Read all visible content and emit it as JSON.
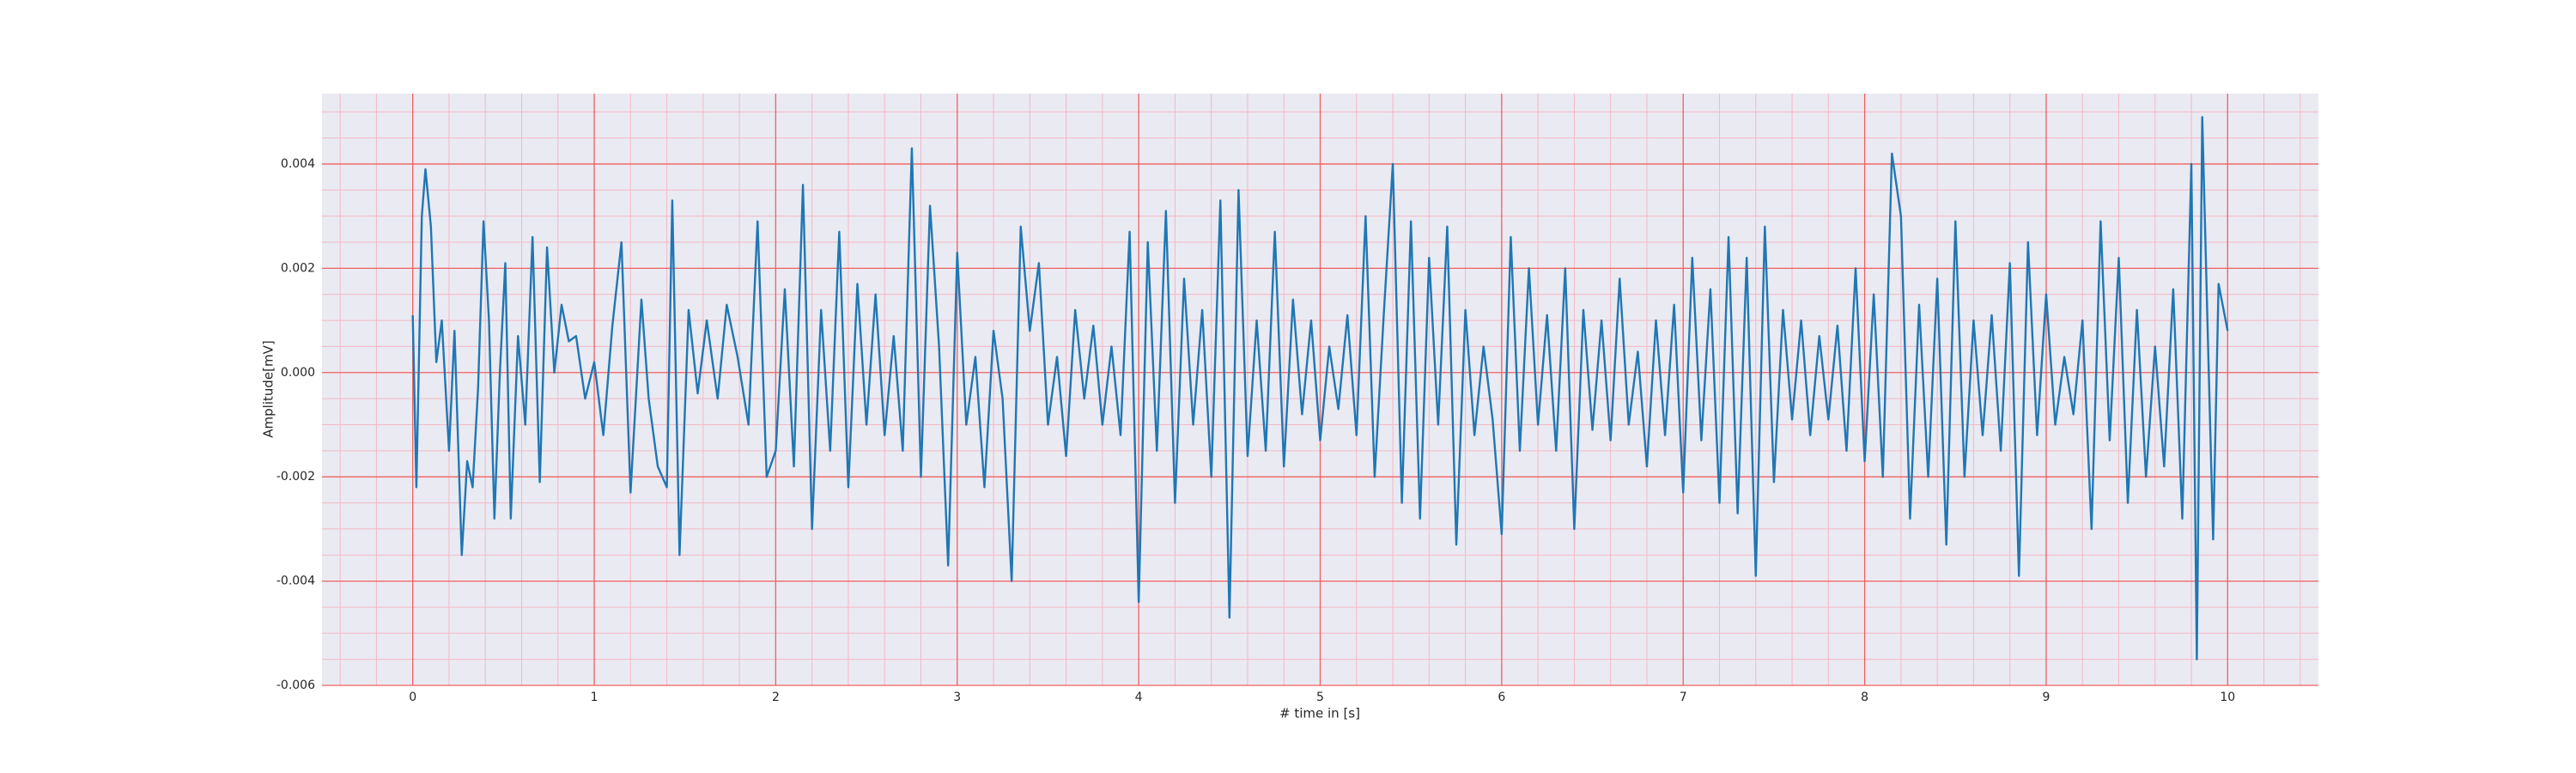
{
  "chart_data": {
    "type": "line",
    "xlabel": "# time in [s]",
    "ylabel": "Amplitude[mV]",
    "xlim": [
      -0.5,
      10.5
    ],
    "ylim": [
      -0.006,
      0.00535
    ],
    "xticks": [
      0,
      1,
      2,
      3,
      4,
      5,
      6,
      7,
      8,
      9,
      10
    ],
    "yticks": [
      -0.006,
      -0.004,
      -0.002,
      {
        "value": 0,
        "label": "0.000"
      },
      0.002,
      0.004
    ],
    "xminorticks": [
      -0.4,
      -0.2,
      0.2,
      0.4,
      0.6,
      0.8,
      1.2,
      1.4,
      1.6,
      1.8,
      2.2,
      2.4,
      2.6,
      2.8,
      3.2,
      3.4,
      3.6,
      3.8,
      4.2,
      4.4,
      4.6,
      4.8,
      5.2,
      5.4,
      5.6,
      5.8,
      6.2,
      6.4,
      6.6,
      6.8,
      7.2,
      7.4,
      7.6,
      7.8,
      8.2,
      8.4,
      8.6,
      8.8,
      9.2,
      9.4,
      9.6,
      9.8,
      10.2,
      10.4
    ],
    "yminorticks": [
      -0.0055,
      -0.005,
      -0.0045,
      -0.0035,
      -0.003,
      -0.0025,
      -0.0015,
      -0.001,
      -0.0005,
      0.0005,
      0.001,
      0.0015,
      0.0025,
      0.003,
      0.0035,
      0.0045,
      0.005
    ],
    "grid": true,
    "grid_color": "#f06060",
    "minor_grid_color": "#f4b8c4",
    "background": "#eaeaf2",
    "x": [
      0,
      0.02,
      0.05,
      0.07,
      0.1,
      0.13,
      0.16,
      0.2,
      0.23,
      0.27,
      0.3,
      0.33,
      0.36,
      0.39,
      0.42,
      0.45,
      0.48,
      0.51,
      0.54,
      0.58,
      0.62,
      0.66,
      0.7,
      0.74,
      0.78,
      0.82,
      0.86,
      0.9,
      0.95,
      1,
      1.05,
      1.1,
      1.15,
      1.2,
      1.26,
      1.3,
      1.35,
      1.4,
      1.43,
      1.47,
      1.52,
      1.57,
      1.62,
      1.68,
      1.73,
      1.79,
      1.85,
      1.9,
      1.95,
      2,
      2.05,
      2.1,
      2.15,
      2.2,
      2.25,
      2.3,
      2.35,
      2.4,
      2.45,
      2.5,
      2.55,
      2.6,
      2.65,
      2.7,
      2.75,
      2.8,
      2.85,
      2.9,
      2.95,
      3,
      3.05,
      3.1,
      3.15,
      3.2,
      3.25,
      3.3,
      3.35,
      3.4,
      3.45,
      3.5,
      3.55,
      3.6,
      3.65,
      3.7,
      3.75,
      3.8,
      3.85,
      3.9,
      3.95,
      4,
      4.05,
      4.1,
      4.15,
      4.2,
      4.25,
      4.3,
      4.35,
      4.4,
      4.45,
      4.5,
      4.55,
      4.6,
      4.65,
      4.7,
      4.75,
      4.8,
      4.85,
      4.9,
      4.95,
      5,
      5.05,
      5.1,
      5.15,
      5.2,
      5.25,
      5.3,
      5.35,
      5.4,
      5.45,
      5.5,
      5.55,
      5.6,
      5.65,
      5.7,
      5.75,
      5.8,
      5.85,
      5.9,
      5.95,
      6,
      6.05,
      6.1,
      6.15,
      6.2,
      6.25,
      6.3,
      6.35,
      6.4,
      6.45,
      6.5,
      6.55,
      6.6,
      6.65,
      6.7,
      6.75,
      6.8,
      6.85,
      6.9,
      6.95,
      7,
      7.05,
      7.1,
      7.15,
      7.2,
      7.25,
      7.3,
      7.35,
      7.4,
      7.45,
      7.5,
      7.55,
      7.6,
      7.65,
      7.7,
      7.75,
      7.8,
      7.85,
      7.9,
      7.95,
      8,
      8.05,
      8.1,
      8.15,
      8.2,
      8.25,
      8.3,
      8.35,
      8.4,
      8.45,
      8.5,
      8.55,
      8.6,
      8.65,
      8.7,
      8.75,
      8.8,
      8.85,
      8.9,
      8.95,
      9,
      9.05,
      9.1,
      9.15,
      9.2,
      9.25,
      9.3,
      9.35,
      9.4,
      9.45,
      9.5,
      9.55,
      9.6,
      9.65,
      9.7,
      9.75,
      9.8,
      9.83,
      9.86,
      9.89,
      9.92,
      9.95,
      10
    ],
    "series": [
      {
        "color": "#1f77b4",
        "values": [
          0.0011,
          -0.0022,
          0.003,
          0.0039,
          0.0028,
          0.0002,
          0.001,
          -0.0015,
          0.0008,
          -0.0035,
          -0.0017,
          -0.0022,
          -0.0003,
          0.0029,
          0.001,
          -0.0028,
          0.0,
          0.0021,
          -0.0028,
          0.0007,
          -0.001,
          0.0026,
          -0.0021,
          0.0024,
          0.0,
          0.0013,
          0.0006,
          0.0007,
          -0.0005,
          0.0002,
          -0.0012,
          0.0009,
          0.0025,
          -0.0023,
          0.0014,
          -0.0005,
          -0.0018,
          -0.0022,
          0.0033,
          -0.0035,
          0.0012,
          -0.0004,
          0.001,
          -0.0005,
          0.0013,
          0.0003,
          -0.001,
          0.0029,
          -0.002,
          -0.0015,
          0.0016,
          -0.0018,
          0.0036,
          -0.003,
          0.0012,
          -0.0015,
          0.0027,
          -0.0022,
          0.0017,
          -0.001,
          0.0015,
          -0.0012,
          0.0007,
          -0.0015,
          0.0043,
          -0.002,
          0.0032,
          0.0005,
          -0.0037,
          0.0023,
          -0.001,
          0.0003,
          -0.0022,
          0.0008,
          -0.0005,
          -0.004,
          0.0028,
          0.0008,
          0.0021,
          -0.001,
          0.0003,
          -0.0016,
          0.0012,
          -0.0005,
          0.0009,
          -0.001,
          0.0005,
          -0.0012,
          0.0027,
          -0.0044,
          0.0025,
          -0.0015,
          0.0031,
          -0.0025,
          0.0018,
          -0.001,
          0.0012,
          -0.002,
          0.0033,
          -0.0047,
          0.0035,
          -0.0016,
          0.001,
          -0.0015,
          0.0027,
          -0.0018,
          0.0014,
          -0.0008,
          0.001,
          -0.0013,
          0.0005,
          -0.0007,
          0.0011,
          -0.0012,
          0.003,
          -0.002,
          0.0011,
          0.004,
          -0.0025,
          0.0029,
          -0.0028,
          0.0022,
          -0.001,
          0.0028,
          -0.0033,
          0.0012,
          -0.0012,
          0.0005,
          -0.0009,
          -0.0031,
          0.0026,
          -0.0015,
          0.002,
          -0.001,
          0.0011,
          -0.0015,
          0.002,
          -0.003,
          0.0012,
          -0.0011,
          0.001,
          -0.0013,
          0.0018,
          -0.001,
          0.0004,
          -0.0018,
          0.001,
          -0.0012,
          0.0013,
          -0.0023,
          0.0022,
          -0.0013,
          0.0016,
          -0.0025,
          0.0026,
          -0.0027,
          0.0022,
          -0.0039,
          0.0028,
          -0.0021,
          0.0012,
          -0.0009,
          0.001,
          -0.0012,
          0.0007,
          -0.0009,
          0.0009,
          -0.0015,
          0.002,
          -0.0017,
          0.0015,
          -0.002,
          0.0042,
          0.003,
          -0.0028,
          0.0013,
          -0.002,
          0.0018,
          -0.0033,
          0.0029,
          -0.002,
          0.001,
          -0.0012,
          0.0011,
          -0.0015,
          0.0021,
          -0.0039,
          0.0025,
          -0.0012,
          0.0015,
          -0.001,
          0.0003,
          -0.0008,
          0.001,
          -0.003,
          0.0029,
          -0.0013,
          0.0022,
          -0.0025,
          0.0012,
          -0.002,
          0.0005,
          -0.0018,
          0.0016,
          -0.0028,
          0.004,
          -0.0055,
          0.0049,
          0.0008,
          -0.0032,
          0.0017,
          0.0008
        ]
      }
    ]
  }
}
